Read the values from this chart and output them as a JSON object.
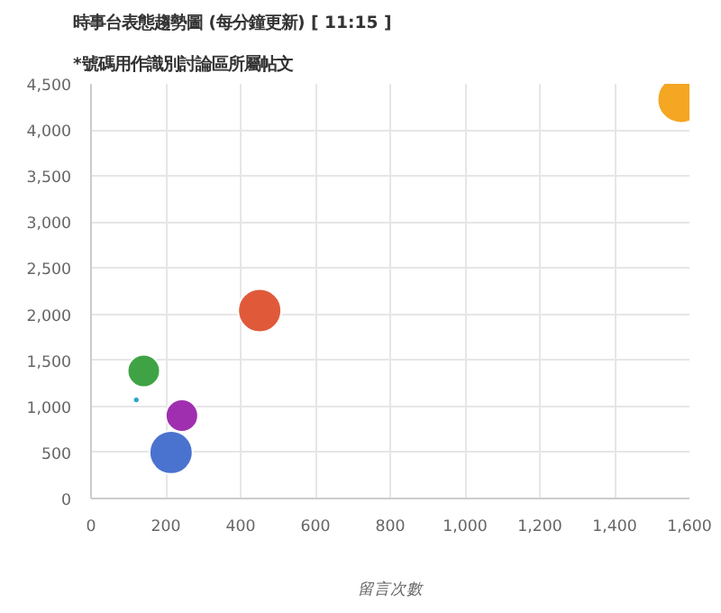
{
  "chart_data": {
    "type": "bubble",
    "title": "時事台表態趨勢圖 (每分鐘更新) [ 11:15 ]",
    "subtitle": "*號碼用作識別討論區所屬帖文",
    "xlabel": "留言次數",
    "x": [
      1577,
      451,
      141,
      121,
      243,
      214
    ],
    "values": [
      4330,
      2040,
      1385,
      1070,
      900,
      500
    ],
    "sizes": [
      1,
      0.85,
      0.48,
      0.02,
      0.48,
      0.85
    ],
    "colors": [
      "#f5a623",
      "#e05a3a",
      "#3fa345",
      "#2aa7c9",
      "#a02fb0",
      "#4a72cf"
    ],
    "xlim": [
      0,
      1600
    ],
    "xticks": [
      0,
      200,
      400,
      600,
      800,
      {
        "value": 1000,
        "label": "1,000"
      },
      {
        "value": 1200,
        "label": "1,200"
      },
      {
        "value": 1400,
        "label": "1,400"
      },
      {
        "value": 1600,
        "label": "1,600"
      }
    ],
    "ylim": [
      0,
      4500
    ],
    "yticks": [
      0,
      500,
      {
        "value": 1000,
        "label": "1,000"
      },
      {
        "value": 1500,
        "label": "1,500"
      },
      {
        "value": 2000,
        "label": "2,000"
      },
      {
        "value": 2500,
        "label": "2,500"
      },
      {
        "value": 3000,
        "label": "3,000"
      },
      {
        "value": 3500,
        "label": "3,500"
      },
      {
        "value": 4000,
        "label": "4,000"
      },
      {
        "value": 4500,
        "label": "4,500"
      }
    ],
    "grid": true
  }
}
